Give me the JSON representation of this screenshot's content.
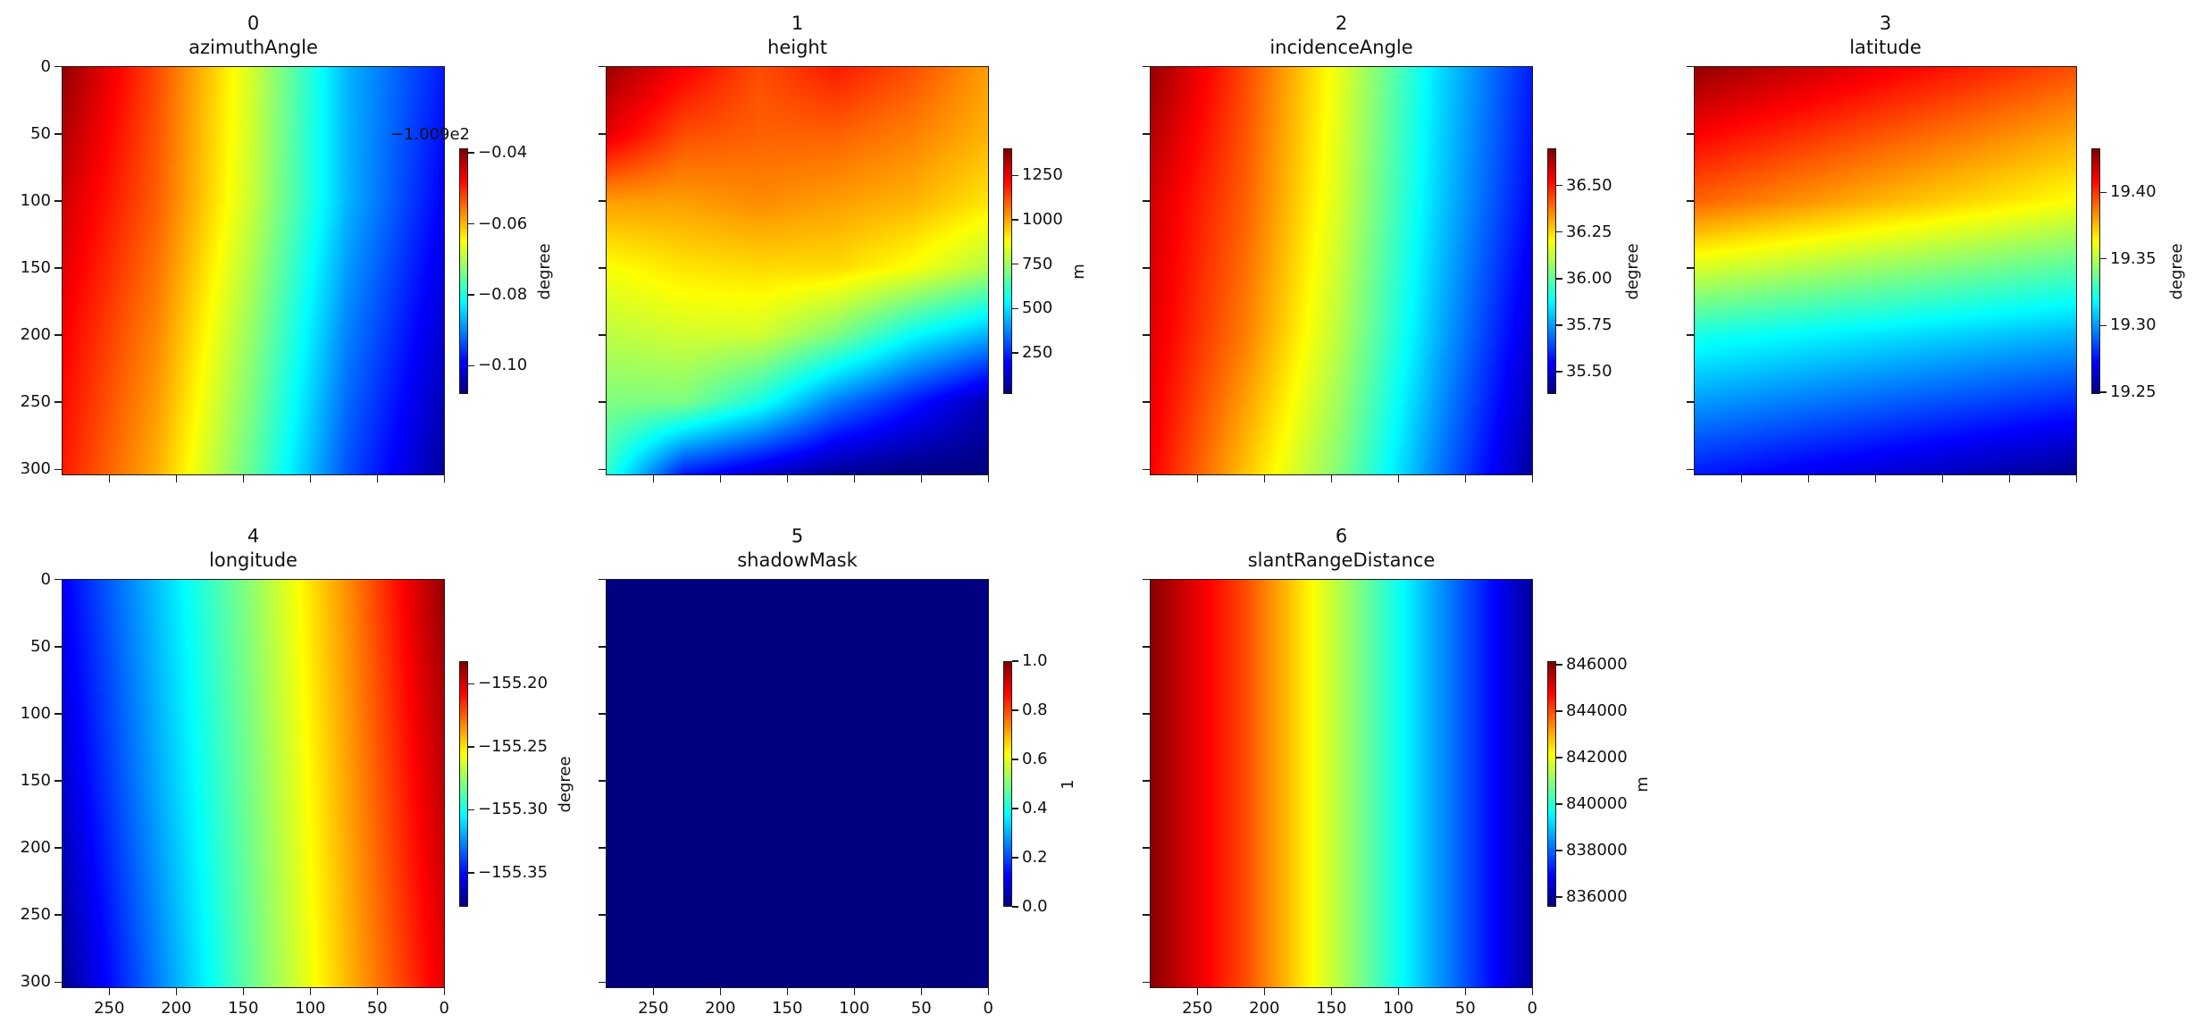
{
  "chart_data": {
    "type": "heatmap",
    "colormap": "jet",
    "grid_layout": "2 rows x 4 columns",
    "xlim": [
      285.5,
      -0.5
    ],
    "ylim": [
      304.5,
      -0.5
    ],
    "x_ticks": [
      250,
      200,
      150,
      100,
      50,
      0
    ],
    "x_tick_labels": [
      "250",
      "200",
      "150",
      "100",
      "50",
      "0"
    ],
    "y_ticks": [
      0,
      50,
      100,
      150,
      200,
      250,
      300
    ],
    "y_tick_labels": [
      "0",
      "50",
      "100",
      "150",
      "200",
      "250",
      "300"
    ],
    "panels": [
      {
        "index": "0",
        "title": "azimuthAngle",
        "colorbar": {
          "label": "degree",
          "range": [
            -0.108,
            -0.0387
          ],
          "offset_text": "−1.009e2",
          "ticks": [
            -0.04,
            -0.06,
            -0.08,
            -0.1
          ],
          "tick_labels": [
            "−0.04",
            "−0.06",
            "−0.08",
            "−0.10"
          ]
        },
        "grid": {
          "x": [
            285,
            214,
            143,
            71,
            0
          ],
          "y": [
            0,
            100,
            200,
            304
          ],
          "values": [
            [
              -0.0401,
              -0.0526,
              -0.0678,
              -0.0872,
              -0.0976
            ],
            [
              -0.0442,
              -0.0539,
              -0.0685,
              -0.0872,
              -0.0997
            ],
            [
              -0.047,
              -0.0567,
              -0.072,
              -0.0907,
              -0.1025
            ],
            [
              -0.0491,
              -0.0595,
              -0.0754,
              -0.0941,
              -0.1059
            ]
          ]
        }
      },
      {
        "index": "1",
        "title": "height",
        "colorbar": {
          "label": "m",
          "range": [
            19,
            1402
          ],
          "ticks": [
            1250,
            1000,
            750,
            500,
            250
          ],
          "tick_labels": [
            "1250",
            "1000",
            "750",
            "500",
            "250"
          ]
        },
        "grid": {
          "x": [
            285,
            228,
            171,
            114,
            57,
            0
          ],
          "y": [
            0,
            50,
            100,
            150,
            200,
            250,
            304
          ],
          "values": [
            [
              1360,
              1236,
              1125,
              1195,
              1125,
              1015
            ],
            [
              1264,
              1125,
              1098,
              1098,
              1056,
              987
            ],
            [
              1015,
              1015,
              1042,
              1015,
              987,
              918
            ],
            [
              876,
              918,
              932,
              932,
              876,
              780
            ],
            [
              793,
              821,
              821,
              710,
              545,
              434
            ],
            [
              710,
              710,
              572,
              365,
              226,
              88
            ],
            [
              600,
              226,
              130,
              47,
              19,
              19
            ]
          ]
        }
      },
      {
        "index": "2",
        "title": "incidenceAngle",
        "colorbar": {
          "label": "degree",
          "range": [
            35.38,
            36.7
          ],
          "ticks": [
            36.5,
            36.25,
            36.0,
            35.75,
            35.5
          ],
          "tick_labels": [
            "36.50",
            "36.25",
            "36.00",
            "35.75",
            "35.50"
          ]
        },
        "grid": {
          "x": [
            285,
            214,
            143,
            71,
            0
          ],
          "y": [
            0,
            100,
            200,
            304
          ],
          "values": [
            [
              36.67,
              36.44,
              36.17,
              35.84,
              35.58
            ],
            [
              36.59,
              36.41,
              36.15,
              35.82,
              35.55
            ],
            [
              36.57,
              36.37,
              36.11,
              35.78,
              35.49
            ],
            [
              36.54,
              36.28,
              36.04,
              35.71,
              35.42
            ]
          ]
        }
      },
      {
        "index": "3",
        "title": "latitude",
        "colorbar": {
          "label": "degree",
          "range": [
            19.2486,
            19.433
          ],
          "ticks": [
            19.4,
            19.35,
            19.3,
            19.25
          ],
          "tick_labels": [
            "19.40",
            "19.35",
            "19.30",
            "19.25"
          ]
        },
        "grid": {
          "x": [
            285,
            143,
            0
          ],
          "y": [
            0,
            100,
            200,
            304
          ],
          "values": [
            [
              19.429,
              19.412,
              19.396
            ],
            [
              19.392,
              19.377,
              19.363
            ],
            [
              19.322,
              19.313,
              19.304
            ],
            [
              19.276,
              19.264,
              19.252
            ]
          ]
        }
      },
      {
        "index": "4",
        "title": "longitude",
        "colorbar": {
          "label": "degree",
          "range": [
            -155.377,
            -155.182
          ],
          "ticks": [
            -155.2,
            -155.25,
            -155.3,
            -155.35
          ],
          "tick_labels": [
            "−155.20",
            "−155.25",
            "−155.30",
            "−155.35"
          ]
        },
        "grid": {
          "x": [
            285,
            214,
            143,
            71,
            0
          ],
          "y": [
            0,
            150,
            304
          ],
          "values": [
            [
              -155.354,
              -155.315,
              -155.276,
              -155.233,
              -155.186
            ],
            [
              -155.362,
              -155.32,
              -155.28,
              -155.237,
              -155.194
            ],
            [
              -155.373,
              -155.328,
              -155.283,
              -155.241,
              -155.202
            ]
          ]
        }
      },
      {
        "index": "5",
        "title": "shadowMask",
        "colorbar": {
          "label": "1",
          "range": [
            0,
            1
          ],
          "ticks": [
            1.0,
            0.8,
            0.6,
            0.4,
            0.2,
            0.0
          ],
          "tick_labels": [
            "1.0",
            "0.8",
            "0.6",
            "0.4",
            "0.2",
            "0.0"
          ]
        },
        "grid": {
          "x": [
            285,
            0
          ],
          "y": [
            0,
            304
          ],
          "values": [
            [
              0,
              0
            ],
            [
              0,
              0
            ]
          ]
        }
      },
      {
        "index": "6",
        "title": "slantRangeDistance",
        "colorbar": {
          "label": "m",
          "range": [
            835577,
            846155
          ],
          "ticks": [
            846000,
            844000,
            842000,
            840000,
            838000,
            836000
          ],
          "tick_labels": [
            "846000",
            "844000",
            "842000",
            "840000",
            "838000",
            "836000"
          ]
        },
        "grid": {
          "x": [
            285,
            214,
            143,
            71,
            0
          ],
          "y": [
            0,
            304
          ],
          "values": [
            [
              846049,
              844039,
              841395,
              838539,
              835894
            ],
            [
              846049,
              844039,
              841395,
              838539,
              835894
            ]
          ]
        }
      }
    ]
  }
}
